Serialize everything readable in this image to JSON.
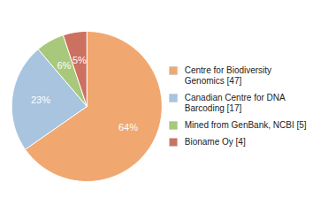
{
  "chart_data": {
    "type": "pie",
    "categories": [
      "Centre for Biodiversity\nGenomics [47]",
      "Canadian Centre for DNA\nBarcoding [17]",
      "Mined from GenBank, NCBI [5]",
      "Bioname Oy [4]"
    ],
    "values": [
      64,
      23,
      6,
      5
    ],
    "value_labels": [
      "64%",
      "23%",
      "6%",
      "5%"
    ],
    "colors": [
      "#f0a870",
      "#a8c4de",
      "#a8c87c",
      "#cc7060"
    ],
    "data_labels": true,
    "legend": "right"
  }
}
